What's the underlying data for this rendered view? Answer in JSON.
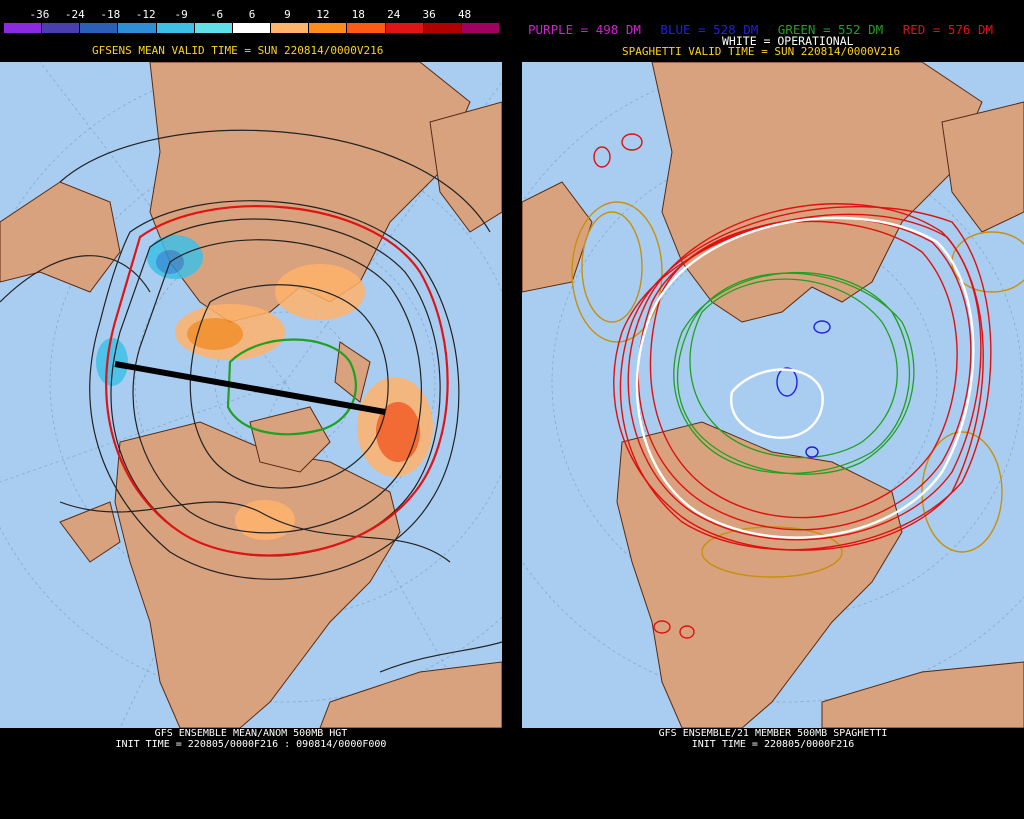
{
  "left": {
    "colorbar": {
      "labels": [
        "-36",
        "-24",
        "-18",
        "-12",
        "-9",
        "-6",
        "6",
        "9",
        "12",
        "18",
        "24",
        "36",
        "48"
      ],
      "colors": [
        "#8a2be2",
        "#4a3fb0",
        "#2c5fb8",
        "#2f8fd6",
        "#3ec0e6",
        "#5fe0e8",
        "#ffffff",
        "#ffb36b",
        "#ff8c1a",
        "#ff5a14",
        "#e01414",
        "#b00000",
        "#a00060"
      ]
    },
    "title": "GFSENS MEAN VALID TIME = SUN 220814/0000V216",
    "footer_line1": "GFS ENSEMBLE MEAN/ANOM 500MB HGT",
    "footer_line2": "INIT TIME = 220805/0000F216 : 090814/0000F000"
  },
  "right": {
    "legend": {
      "purple": "PURPLE = 498 DM",
      "blue": "BLUE = 528 DM",
      "green": "GREEN = 552 DM",
      "red": "RED = 576 DM",
      "white": "WHITE = OPERATIONAL"
    },
    "legend_colors": {
      "purple": "#d020d0",
      "blue": "#2020e0",
      "green": "#20a020",
      "red": "#e01010"
    },
    "title": "SPAGHETTI VALID TIME = SUN 220814/0000V216",
    "footer_line1": "GFS ENSEMBLE/21 MEMBER 500MB SPAGHETTI",
    "footer_line2": "INIT TIME = 220805/0000F216"
  },
  "colors": {
    "ocean": "#a9cdf0",
    "land": "#d9a27e",
    "border": "#5a2a10"
  }
}
